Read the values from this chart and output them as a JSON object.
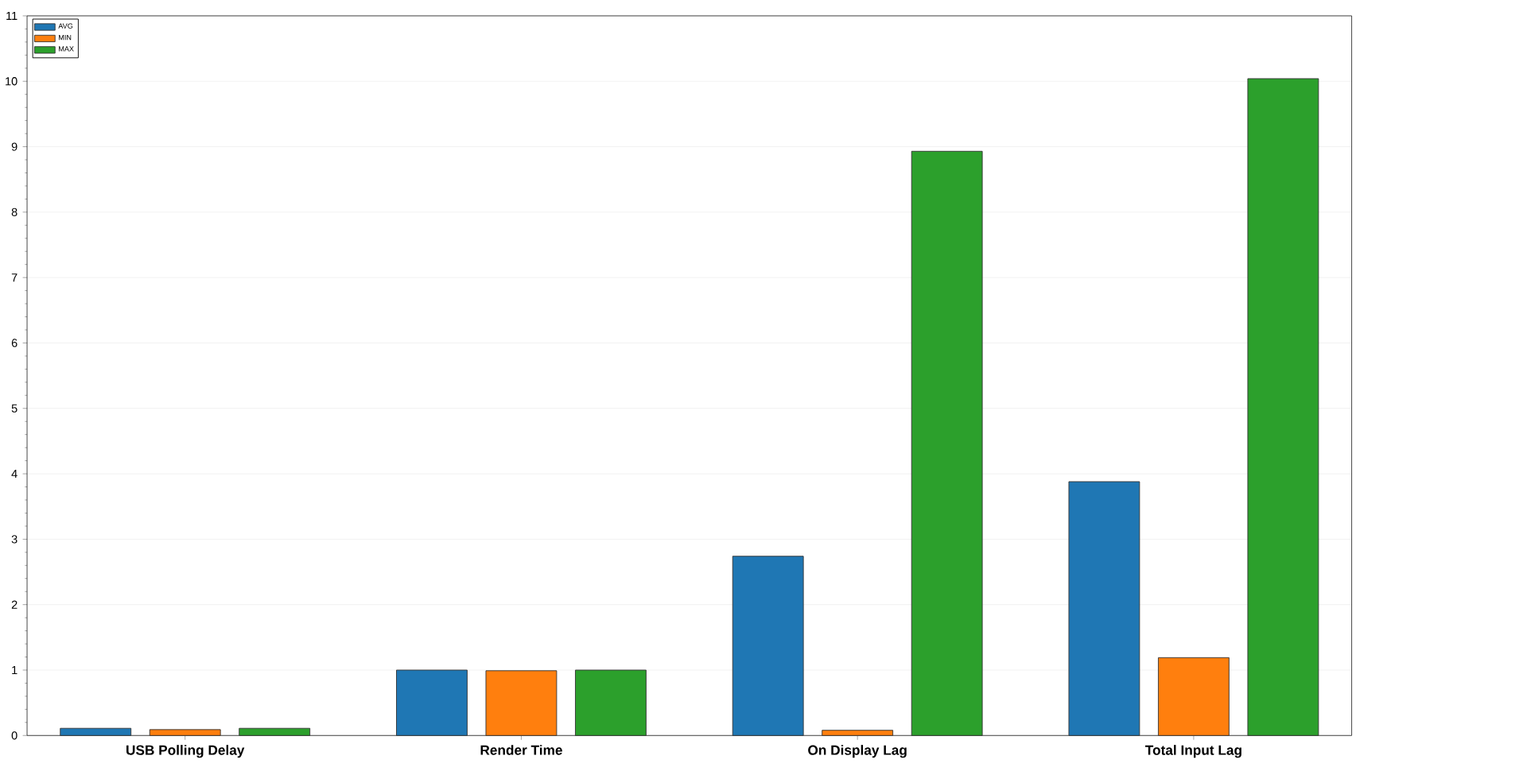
{
  "chart_data": {
    "type": "bar",
    "categories": [
      "USB Polling Delay",
      "Render Time",
      "On Display Lag",
      "Total Input Lag"
    ],
    "series": [
      {
        "name": "AVG",
        "color": "#1f77b4",
        "values": [
          0.11,
          1.0,
          2.74,
          3.88
        ]
      },
      {
        "name": "MIN",
        "color": "#ff7f0e",
        "values": [
          0.09,
          0.99,
          0.08,
          1.19
        ]
      },
      {
        "name": "MAX",
        "color": "#2ca02c",
        "values": [
          0.11,
          1.0,
          8.93,
          10.04
        ]
      }
    ],
    "ylim": [
      0,
      11
    ],
    "yticks": [
      0,
      1,
      2,
      3,
      4,
      5,
      6,
      7,
      8,
      9,
      10,
      11
    ],
    "grid": "y",
    "legend": "top left"
  }
}
